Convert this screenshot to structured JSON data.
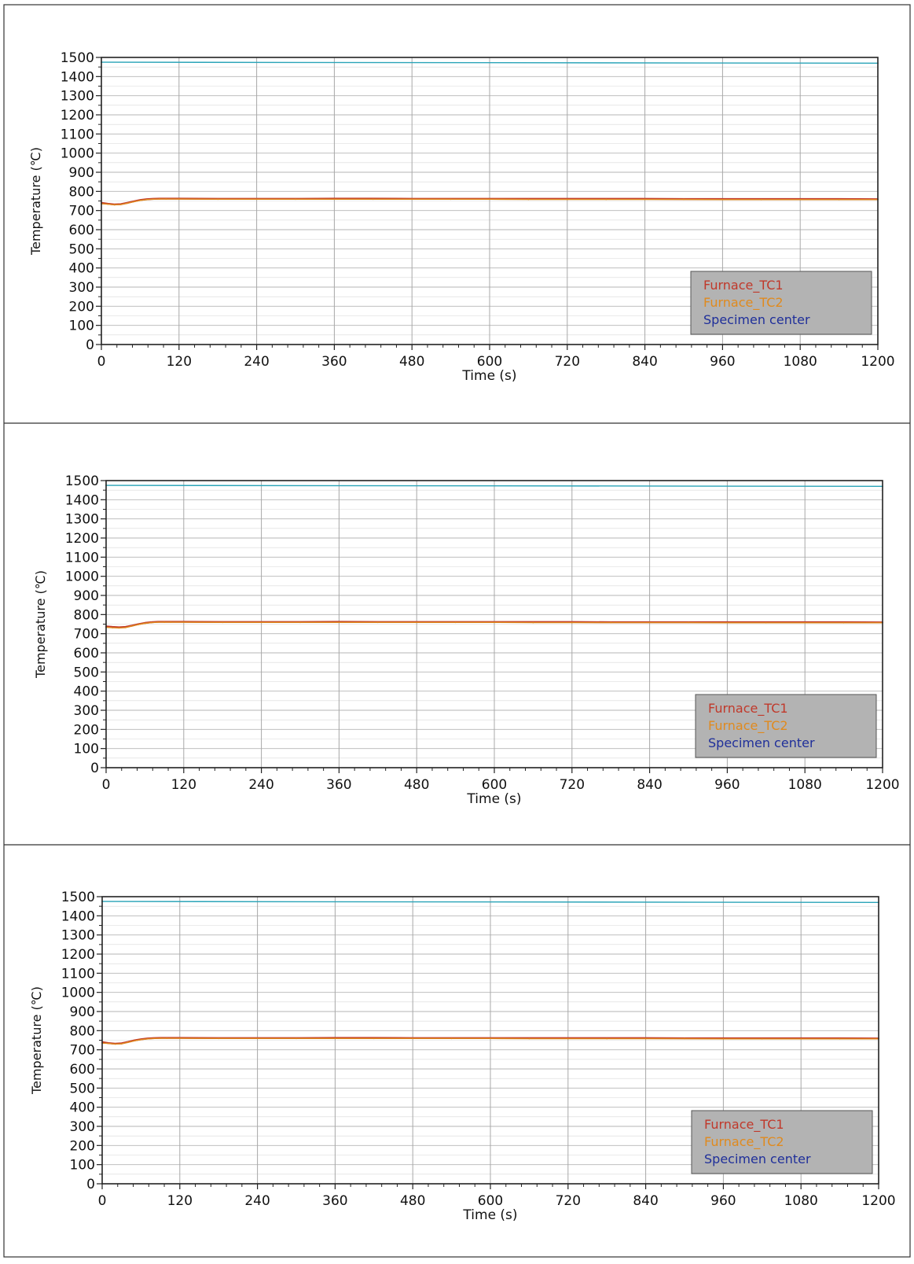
{
  "chart_data": [
    {
      "type": "line",
      "xlabel": "Time (s)",
      "ylabel": "Temperature (℃)",
      "xlim": [
        0,
        1200
      ],
      "ylim": [
        0,
        1500
      ],
      "xticks": [
        0,
        120,
        240,
        360,
        480,
        600,
        720,
        840,
        960,
        1080,
        1200
      ],
      "yticks": [
        0,
        100,
        200,
        300,
        400,
        500,
        600,
        700,
        800,
        900,
        1000,
        1100,
        1200,
        1300,
        1400,
        1500
      ],
      "grid": true,
      "legend": "bottom-right",
      "series": [
        {
          "name": "Furnace_TC1",
          "color": "#c0392b",
          "x": [
            0,
            10,
            20,
            30,
            40,
            50,
            60,
            70,
            80,
            90,
            100,
            120,
            180,
            240,
            300,
            360,
            420,
            480,
            540,
            600,
            660,
            720,
            780,
            840,
            900,
            960,
            1020,
            1080,
            1140,
            1200
          ],
          "y": [
            740,
            735,
            732,
            733,
            740,
            748,
            755,
            759,
            761,
            762,
            762,
            762,
            761,
            761,
            761,
            762,
            762,
            761,
            761,
            761,
            761,
            761,
            761,
            761,
            760,
            760,
            760,
            760,
            760,
            759
          ]
        },
        {
          "name": "Furnace_TC2",
          "color": "#e08a1e",
          "x": [
            0,
            10,
            20,
            30,
            40,
            50,
            60,
            70,
            80,
            90,
            100,
            120,
            180,
            240,
            300,
            360,
            420,
            480,
            540,
            600,
            660,
            720,
            780,
            840,
            900,
            960,
            1020,
            1080,
            1140,
            1200
          ],
          "y": [
            735,
            733,
            730,
            731,
            738,
            746,
            753,
            757,
            759,
            760,
            760,
            760,
            759,
            759,
            759,
            759,
            759,
            759,
            759,
            759,
            758,
            758,
            758,
            758,
            758,
            757,
            757,
            757,
            757,
            757
          ]
        },
        {
          "name": "Specimen center",
          "color": "#2aa4b8",
          "x": [
            0,
            1200
          ],
          "y": [
            1475,
            1470
          ]
        }
      ]
    },
    {
      "type": "line",
      "xlabel": "Time (s)",
      "ylabel": "Temperature (℃)",
      "xlim": [
        0,
        1200
      ],
      "ylim": [
        0,
        1500
      ],
      "xticks": [
        0,
        120,
        240,
        360,
        480,
        600,
        720,
        840,
        960,
        1080,
        1200
      ],
      "yticks": [
        0,
        100,
        200,
        300,
        400,
        500,
        600,
        700,
        800,
        900,
        1000,
        1100,
        1200,
        1300,
        1400,
        1500
      ],
      "grid": true,
      "legend": "bottom-right",
      "series": [
        {
          "name": "Furnace_TC1",
          "color": "#c0392b",
          "x": [
            0,
            10,
            20,
            30,
            40,
            50,
            60,
            70,
            80,
            90,
            100,
            120,
            180,
            240,
            300,
            360,
            420,
            480,
            540,
            600,
            660,
            720,
            780,
            840,
            900,
            960,
            1020,
            1080,
            1140,
            1200
          ],
          "y": [
            738,
            735,
            733,
            735,
            742,
            750,
            756,
            760,
            762,
            762,
            762,
            762,
            761,
            761,
            761,
            762,
            761,
            761,
            761,
            761,
            761,
            761,
            760,
            760,
            760,
            760,
            760,
            760,
            760,
            759
          ]
        },
        {
          "name": "Furnace_TC2",
          "color": "#e08a1e",
          "x": [
            0,
            10,
            20,
            30,
            40,
            50,
            60,
            70,
            80,
            90,
            100,
            120,
            180,
            240,
            300,
            360,
            420,
            480,
            540,
            600,
            660,
            720,
            780,
            840,
            900,
            960,
            1020,
            1080,
            1140,
            1200
          ],
          "y": [
            733,
            731,
            730,
            732,
            740,
            748,
            754,
            758,
            760,
            760,
            760,
            760,
            759,
            759,
            759,
            759,
            759,
            759,
            759,
            759,
            758,
            758,
            758,
            758,
            758,
            757,
            757,
            757,
            757,
            757
          ]
        },
        {
          "name": "Specimen center",
          "color": "#2aa4b8",
          "x": [
            0,
            1200
          ],
          "y": [
            1475,
            1470
          ]
        }
      ]
    },
    {
      "type": "line",
      "xlabel": "Time (s)",
      "ylabel": "Temperature (℃)",
      "xlim": [
        0,
        1200
      ],
      "ylim": [
        0,
        1500
      ],
      "xticks": [
        0,
        120,
        240,
        360,
        480,
        600,
        720,
        840,
        960,
        1080,
        1200
      ],
      "yticks": [
        0,
        100,
        200,
        300,
        400,
        500,
        600,
        700,
        800,
        900,
        1000,
        1100,
        1200,
        1300,
        1400,
        1500
      ],
      "grid": true,
      "legend": "bottom-right",
      "series": [
        {
          "name": "Furnace_TC1",
          "color": "#c0392b",
          "x": [
            0,
            10,
            20,
            30,
            40,
            50,
            60,
            70,
            80,
            90,
            100,
            120,
            180,
            240,
            300,
            360,
            420,
            480,
            540,
            600,
            660,
            720,
            780,
            840,
            900,
            960,
            1020,
            1080,
            1140,
            1200
          ],
          "y": [
            740,
            735,
            732,
            734,
            741,
            749,
            755,
            759,
            761,
            762,
            762,
            762,
            761,
            761,
            761,
            762,
            762,
            761,
            761,
            761,
            761,
            761,
            761,
            761,
            760,
            760,
            760,
            760,
            760,
            759
          ]
        },
        {
          "name": "Furnace_TC2",
          "color": "#e08a1e",
          "x": [
            0,
            10,
            20,
            30,
            40,
            50,
            60,
            70,
            80,
            90,
            100,
            120,
            180,
            240,
            300,
            360,
            420,
            480,
            540,
            600,
            660,
            720,
            780,
            840,
            900,
            960,
            1020,
            1080,
            1140,
            1200
          ],
          "y": [
            735,
            733,
            730,
            731,
            739,
            747,
            753,
            757,
            759,
            760,
            760,
            760,
            759,
            759,
            759,
            759,
            759,
            759,
            759,
            759,
            758,
            758,
            758,
            758,
            758,
            757,
            757,
            757,
            757,
            757
          ]
        },
        {
          "name": "Specimen center",
          "color": "#2aa4b8",
          "x": [
            0,
            1200
          ],
          "y": [
            1475,
            1470
          ]
        }
      ]
    }
  ]
}
